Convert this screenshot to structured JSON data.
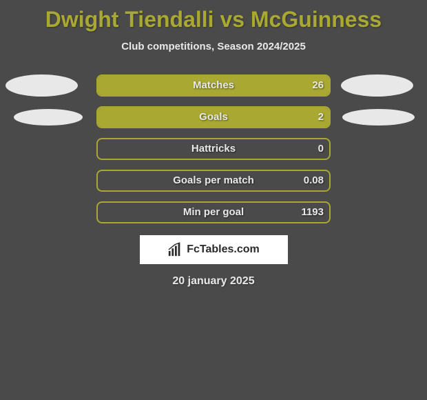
{
  "title": "Dwight Tiendalli vs McGuinness",
  "subtitle": "Club competitions, Season 2024/2025",
  "colors": {
    "background": "#4a4a4a",
    "accent": "#a8a832",
    "text_light": "#e8e8e8",
    "oval": "#e8e8e8",
    "logo_bg": "#ffffff",
    "logo_text": "#2a2a2a"
  },
  "stats": [
    {
      "label": "Matches",
      "right_value": "26",
      "fill_percent": 100,
      "show_left_oval": true,
      "show_right_oval": true,
      "oval_style": "wide"
    },
    {
      "label": "Goals",
      "right_value": "2",
      "fill_percent": 100,
      "show_left_oval": true,
      "show_right_oval": true,
      "oval_style": "narrow"
    },
    {
      "label": "Hattricks",
      "right_value": "0",
      "fill_percent": 0,
      "show_left_oval": false,
      "show_right_oval": false
    },
    {
      "label": "Goals per match",
      "right_value": "0.08",
      "fill_percent": 0,
      "show_left_oval": false,
      "show_right_oval": false
    },
    {
      "label": "Min per goal",
      "right_value": "1193",
      "fill_percent": 0,
      "show_left_oval": false,
      "show_right_oval": false
    }
  ],
  "logo": {
    "text": "FcTables.com"
  },
  "date": "20 january 2025"
}
